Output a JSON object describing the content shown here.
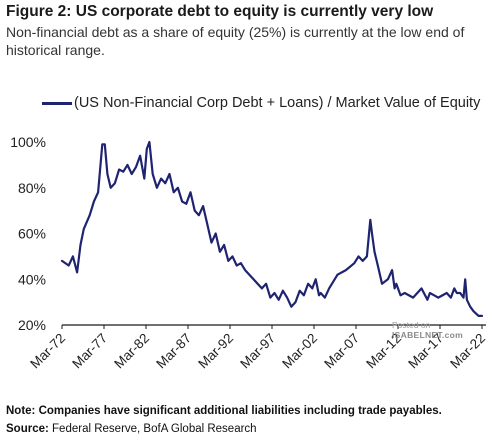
{
  "header": {
    "title": "Figure 2: US corporate debt to equity is currently very low",
    "subtitle": "Non-financial debt as a share of equity (25%) is currently at the low end of historical range."
  },
  "legend": {
    "label": "(US Non-Financial Corp Debt + Loans) / Market Value of Equity"
  },
  "footer": {
    "note": "Note: Companies have significant additional liabilities including trade payables.",
    "source_label": "Source:",
    "source_text": "Federal Reserve, BofA Global Research"
  },
  "watermark": {
    "line1": "Posted on",
    "line2": "ISABELNET.com"
  },
  "colors": {
    "series": "#1f2470",
    "axis": "#1a1a1a"
  },
  "chart_data": {
    "type": "line",
    "title": "",
    "xlabel": "",
    "ylabel": "",
    "ylim": [
      20,
      100
    ],
    "x_ticks": [
      "Mar-72",
      "Mar-77",
      "Mar-82",
      "Mar-87",
      "Mar-92",
      "Mar-97",
      "Mar-02",
      "Mar-07",
      "Mar-12",
      "Mar-17",
      "Mar-22"
    ],
    "y_ticks": [
      "20%",
      "40%",
      "60%",
      "80%",
      "100%"
    ],
    "grid": false,
    "legend_position": "top-left",
    "series": [
      {
        "name": "(US Non-Financial Corp Debt + Loans) / Market Value of Equity",
        "x": [
          1972.2,
          1973.0,
          1973.5,
          1974.0,
          1974.4,
          1974.8,
          1975.5,
          1976.0,
          1976.5,
          1977.0,
          1977.3,
          1977.6,
          1978.0,
          1978.5,
          1979.0,
          1979.5,
          1980.0,
          1980.5,
          1981.0,
          1981.5,
          1982.0,
          1982.3,
          1982.6,
          1983.0,
          1983.5,
          1984.0,
          1984.5,
          1985.0,
          1985.5,
          1986.0,
          1986.5,
          1987.0,
          1987.5,
          1988.0,
          1988.5,
          1989.0,
          1989.5,
          1990.0,
          1990.5,
          1991.0,
          1991.5,
          1992.0,
          1992.5,
          1993.0,
          1993.5,
          1994.0,
          1995.0,
          1996.0,
          1996.5,
          1997.0,
          1997.5,
          1998.0,
          1998.5,
          1999.0,
          1999.5,
          2000.0,
          2000.5,
          2001.0,
          2001.5,
          2002.0,
          2002.4,
          2002.8,
          2003.0,
          2003.5,
          2004.0,
          2005.0,
          2006.0,
          2007.0,
          2007.5,
          2008.0,
          2008.5,
          2008.9,
          2009.1,
          2009.4,
          2009.8,
          2010.3,
          2011.0,
          2011.5,
          2011.8,
          2012.0,
          2012.5,
          2013.0,
          2014.0,
          2015.0,
          2015.7,
          2016.0,
          2016.5,
          2017.0,
          2018.0,
          2018.5,
          2018.9,
          2019.2,
          2019.6,
          2020.0,
          2020.2,
          2020.4,
          2020.8,
          2021.2,
          2021.8,
          2022.2
        ],
        "values": [
          48,
          46,
          50,
          43,
          55,
          62,
          68,
          74,
          78,
          99,
          99,
          86,
          80,
          82,
          88,
          87,
          90,
          86,
          89,
          94,
          84,
          97,
          100,
          86,
          80,
          84,
          82,
          86,
          78,
          80,
          74,
          73,
          78,
          70,
          68,
          72,
          64,
          56,
          60,
          52,
          55,
          48,
          50,
          46,
          47,
          44,
          40,
          36,
          38,
          32,
          34,
          31,
          35,
          32,
          28,
          30,
          35,
          33,
          38,
          36,
          40,
          33,
          34,
          32,
          36,
          42,
          44,
          47,
          50,
          48,
          50,
          66,
          60,
          52,
          46,
          38,
          40,
          44,
          36,
          38,
          33,
          34,
          32,
          36,
          31,
          34,
          33,
          32,
          34,
          32,
          36,
          34,
          34,
          32,
          40,
          31,
          28,
          26,
          24,
          24
        ]
      }
    ]
  }
}
